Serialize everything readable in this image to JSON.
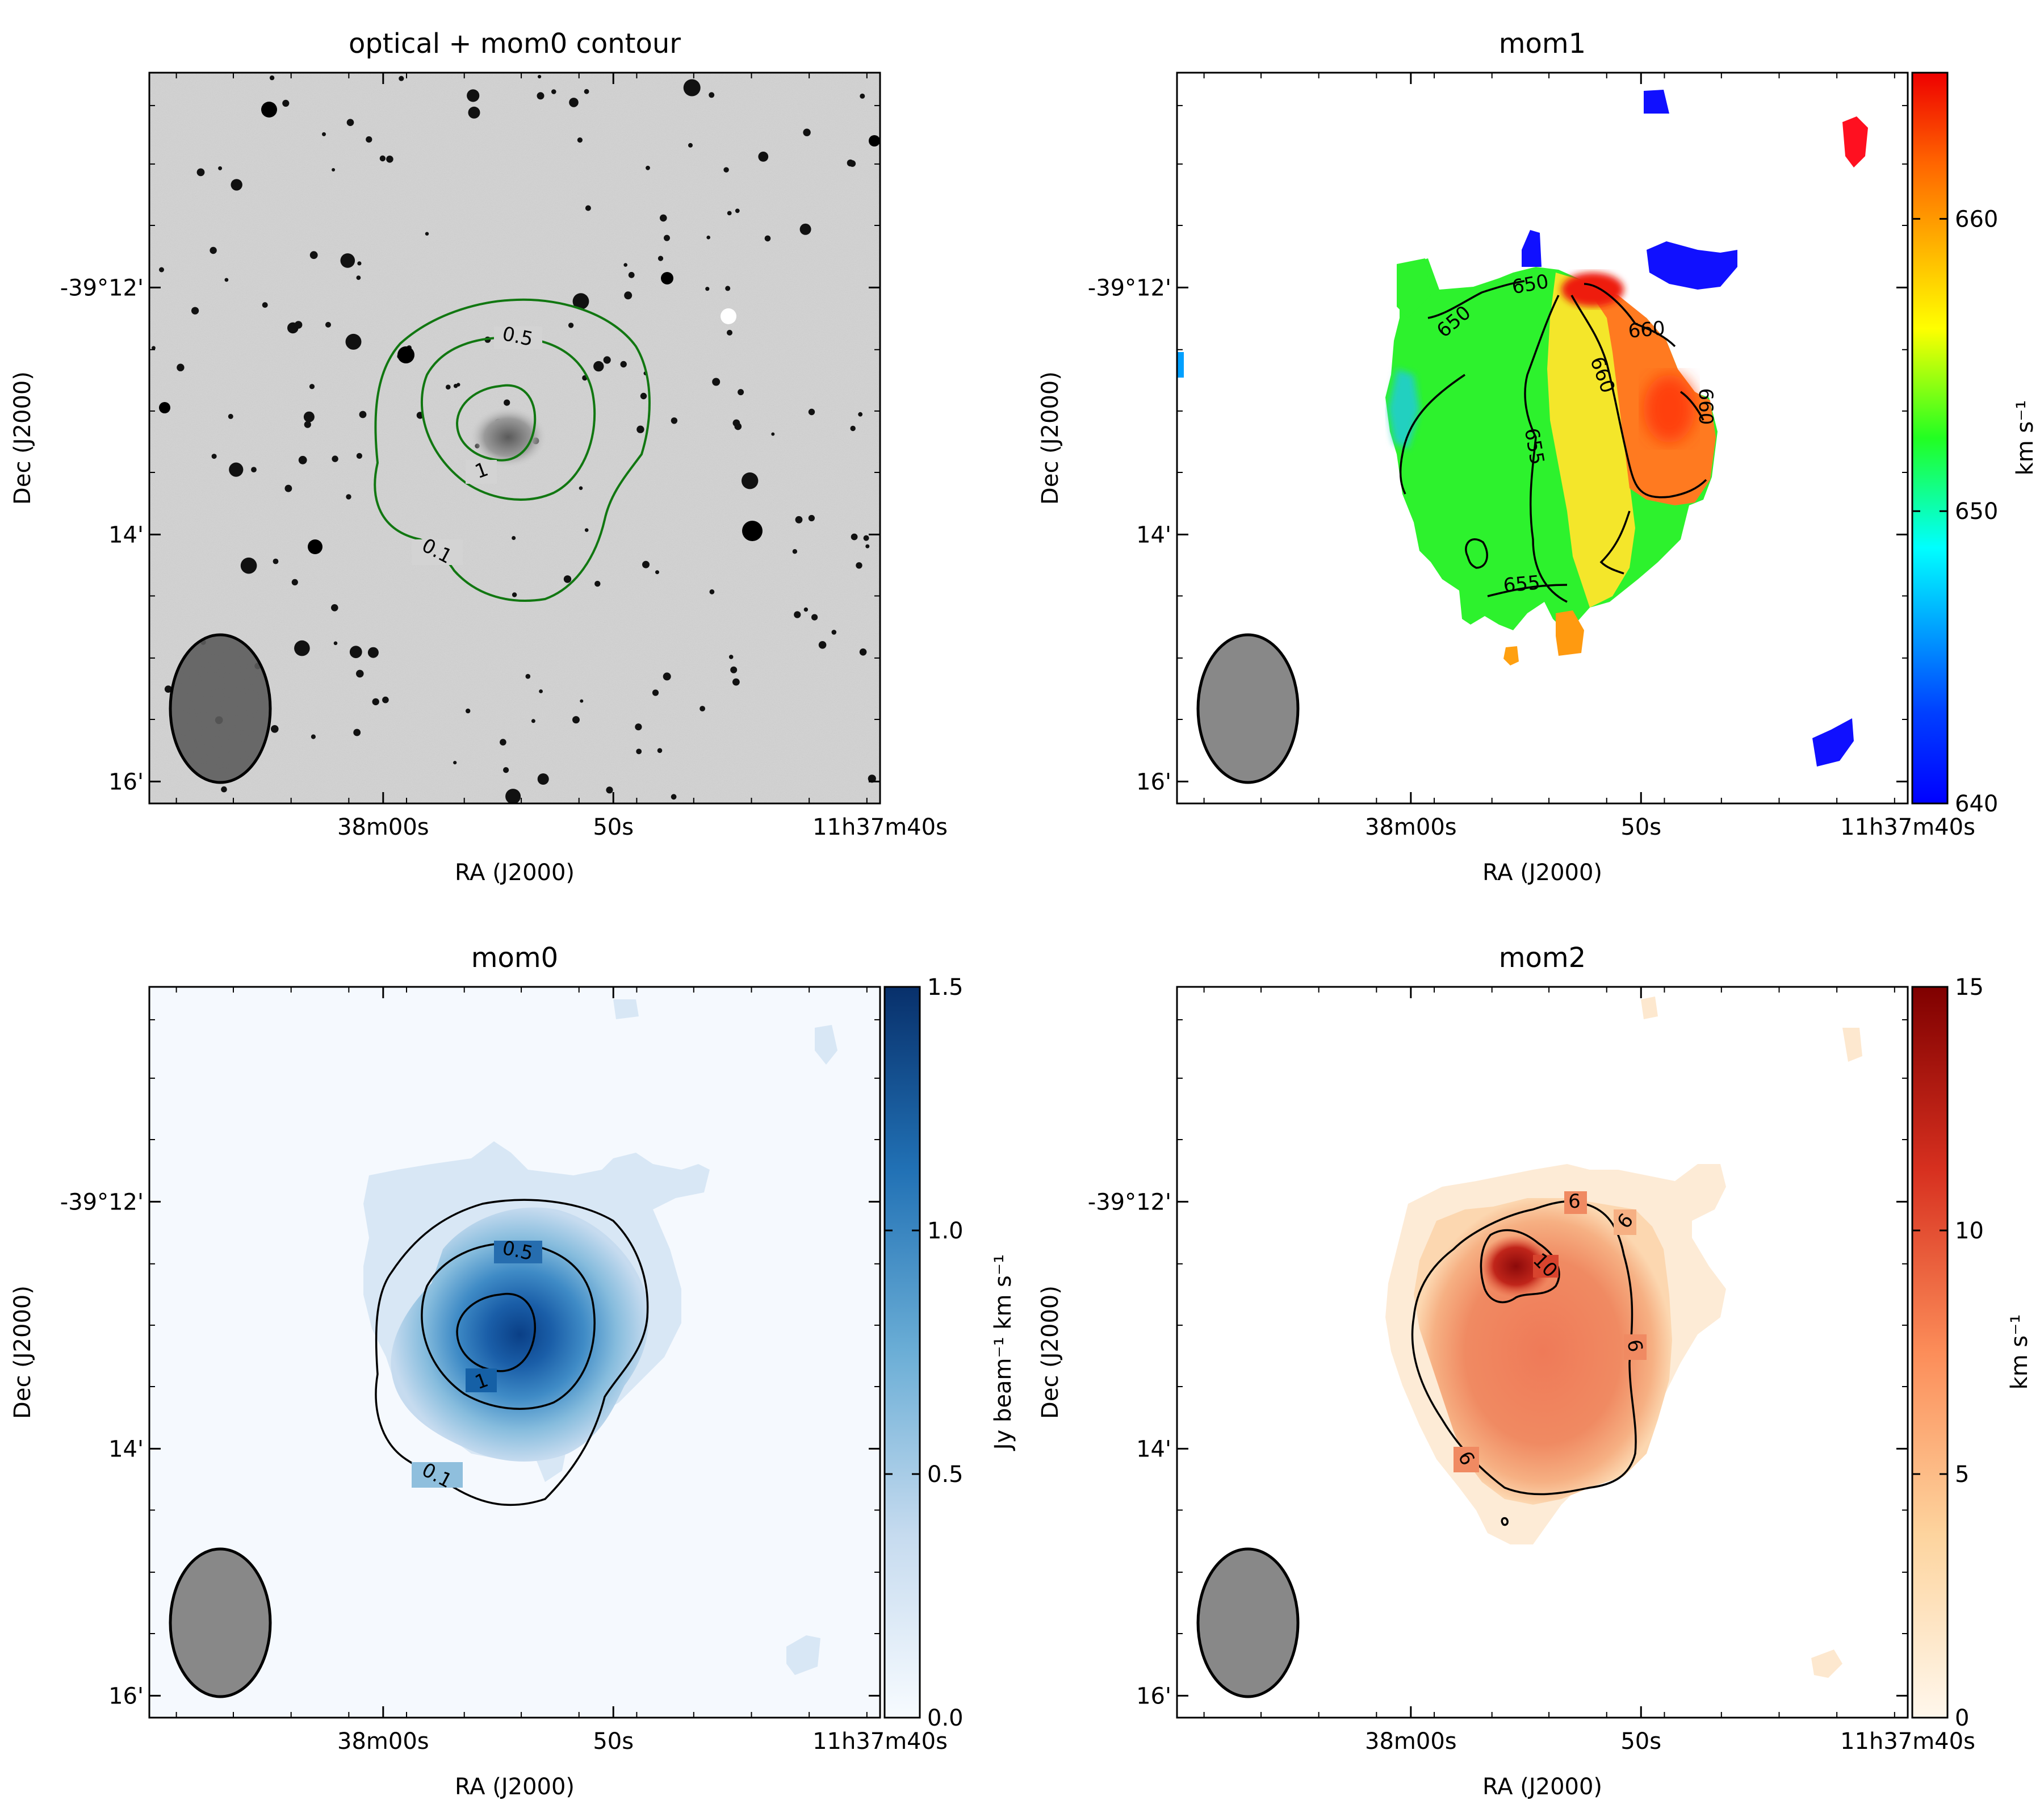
{
  "chart_data": [
    {
      "type": "heatmap",
      "panel": "optical",
      "title": "optical + mom0 contour",
      "xlabel": "RA (J2000)",
      "ylabel": "Dec (J2000)",
      "xticks": [
        "38m00s",
        "50s",
        "11h37m40s"
      ],
      "yticks": [
        "-39°12'",
        "14'",
        "16'"
      ],
      "contour_color": "#117711",
      "contours": [
        {
          "level": 0.1,
          "label": "0.1"
        },
        {
          "level": 0.5,
          "label": "0.5"
        },
        {
          "level": 1,
          "label": "1"
        }
      ],
      "beam": true
    },
    {
      "type": "heatmap",
      "panel": "mom1",
      "title": "mom1",
      "xlabel": "RA (J2000)",
      "ylabel": "Dec (J2000)",
      "xticks": [
        "38m00s",
        "50s",
        "11h37m40s"
      ],
      "yticks": [
        "-39°12'",
        "14'",
        "16'"
      ],
      "colormap": "jet",
      "colorbar": {
        "min": 640,
        "max": 665,
        "ticks": [
          "640",
          "650",
          "660"
        ],
        "label": "km s⁻¹"
      },
      "contours": [
        {
          "level": 650,
          "label": "650"
        },
        {
          "level": 655,
          "label": "655"
        },
        {
          "level": 660,
          "label": "660"
        }
      ],
      "beam": true
    },
    {
      "type": "heatmap",
      "panel": "mom0",
      "title": "mom0",
      "xlabel": "RA (J2000)",
      "ylabel": "Dec (J2000)",
      "xticks": [
        "38m00s",
        "50s",
        "11h37m40s"
      ],
      "yticks": [
        "-39°12'",
        "14'",
        "16'"
      ],
      "colormap": "Blues",
      "colorbar": {
        "min": 0,
        "max": 1.5,
        "ticks": [
          "0.0",
          "0.5",
          "1.0",
          "1.5"
        ],
        "label": "Jy beam⁻¹ km s⁻¹"
      },
      "contours": [
        {
          "level": 0.1,
          "label": "0.1"
        },
        {
          "level": 0.5,
          "label": "0.5"
        },
        {
          "level": 1,
          "label": "1"
        }
      ],
      "beam": true
    },
    {
      "type": "heatmap",
      "panel": "mom2",
      "title": "mom2",
      "xlabel": "RA (J2000)",
      "ylabel": "Dec (J2000)",
      "xticks": [
        "38m00s",
        "50s",
        "11h37m40s"
      ],
      "yticks": [
        "-39°12'",
        "14'",
        "16'"
      ],
      "colormap": "OrRd",
      "colorbar": {
        "min": 0,
        "max": 15,
        "ticks": [
          "0",
          "5",
          "10",
          "15"
        ],
        "label": "km s⁻¹"
      },
      "contours": [
        {
          "level": 6,
          "label": "6"
        },
        {
          "level": 10,
          "label": "10"
        }
      ],
      "beam": true
    }
  ]
}
